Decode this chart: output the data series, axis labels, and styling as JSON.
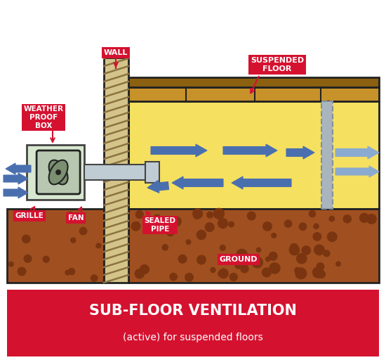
{
  "bg_color": "#ffffff",
  "red_color": "#d41230",
  "blue_color": "#4a6faf",
  "blue_light": "#8aaad0",
  "wall_fill": "#d4c48a",
  "wall_hatch": "#8b7340",
  "floor_light": "#c8922a",
  "floor_dark": "#8b6010",
  "subfloor_yellow": "#f5e060",
  "ground_brown": "#a05020",
  "ground_dark": "#7a3510",
  "pipe_gray": "#aab4bc",
  "pipe_dark": "#8090a0",
  "fan_box_fill": "#d8e8d0",
  "fan_box_stroke": "#444444",
  "duct_fill": "#c0ccd4",
  "outline": "#222222",
  "title_main": "SUB-FLOOR VENTILATION",
  "title_sub": "(active) for suspended floors",
  "label_wall": "WALL",
  "label_floor": "SUSPENDED\nFLOOR",
  "label_wpbox": "WEATHER\nPROOF\nBOX",
  "label_grille": "GRILLE",
  "label_fan": "FAN",
  "label_pipe": "SEALED\nPIPE",
  "label_ground": "GROUND"
}
